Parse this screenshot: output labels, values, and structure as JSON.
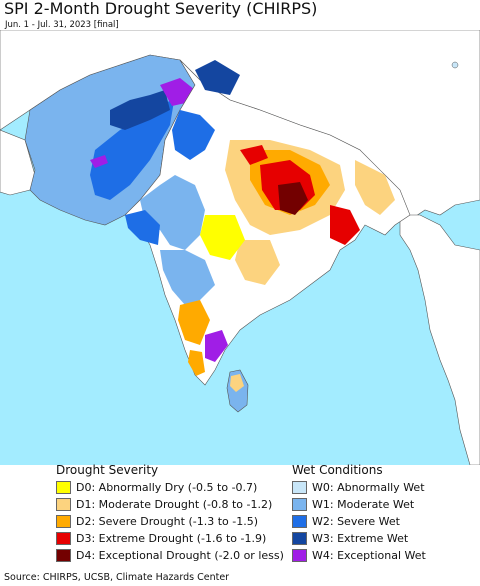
{
  "header": {
    "title": "SPI 2-Month Drought Severity (CHIRPS)",
    "subtitle": "Jun. 1 - Jul. 31, 2023 [final]"
  },
  "legend": {
    "drought": {
      "heading": "Drought Severity",
      "items": [
        {
          "label": "D0: Abnormally Dry (-0.5 to -0.7)",
          "color": "#ffff00"
        },
        {
          "label": "D1: Moderate Drought (-0.8 to -1.2)",
          "color": "#fcd37f"
        },
        {
          "label": "D2: Severe Drought (-1.3 to -1.5)",
          "color": "#ffaa00"
        },
        {
          "label": "D3: Extreme Drought (-1.6 to -1.9)",
          "color": "#e60000"
        },
        {
          "label": "D4: Exceptional Drought (-2.0 or less)",
          "color": "#730000"
        }
      ]
    },
    "wet": {
      "heading": "Wet Conditions",
      "items": [
        {
          "label": "W0: Abnormally Wet",
          "color": "#c8e6f8"
        },
        {
          "label": "W1: Moderate Wet",
          "color": "#7ab4ee"
        },
        {
          "label": "W2: Severe Wet",
          "color": "#1e6ee6"
        },
        {
          "label": "W3: Extreme Wet",
          "color": "#1446a0"
        },
        {
          "label": "W4: Exceptional Wet",
          "color": "#a01ee6"
        }
      ]
    }
  },
  "source": "Source: CHIRPS, UCSB, Climate Hazards Center",
  "colors": {
    "ocean": "#a3ecff",
    "land_outside": "#ffffff",
    "normal_land": "#ffffff",
    "border": "#555555"
  }
}
